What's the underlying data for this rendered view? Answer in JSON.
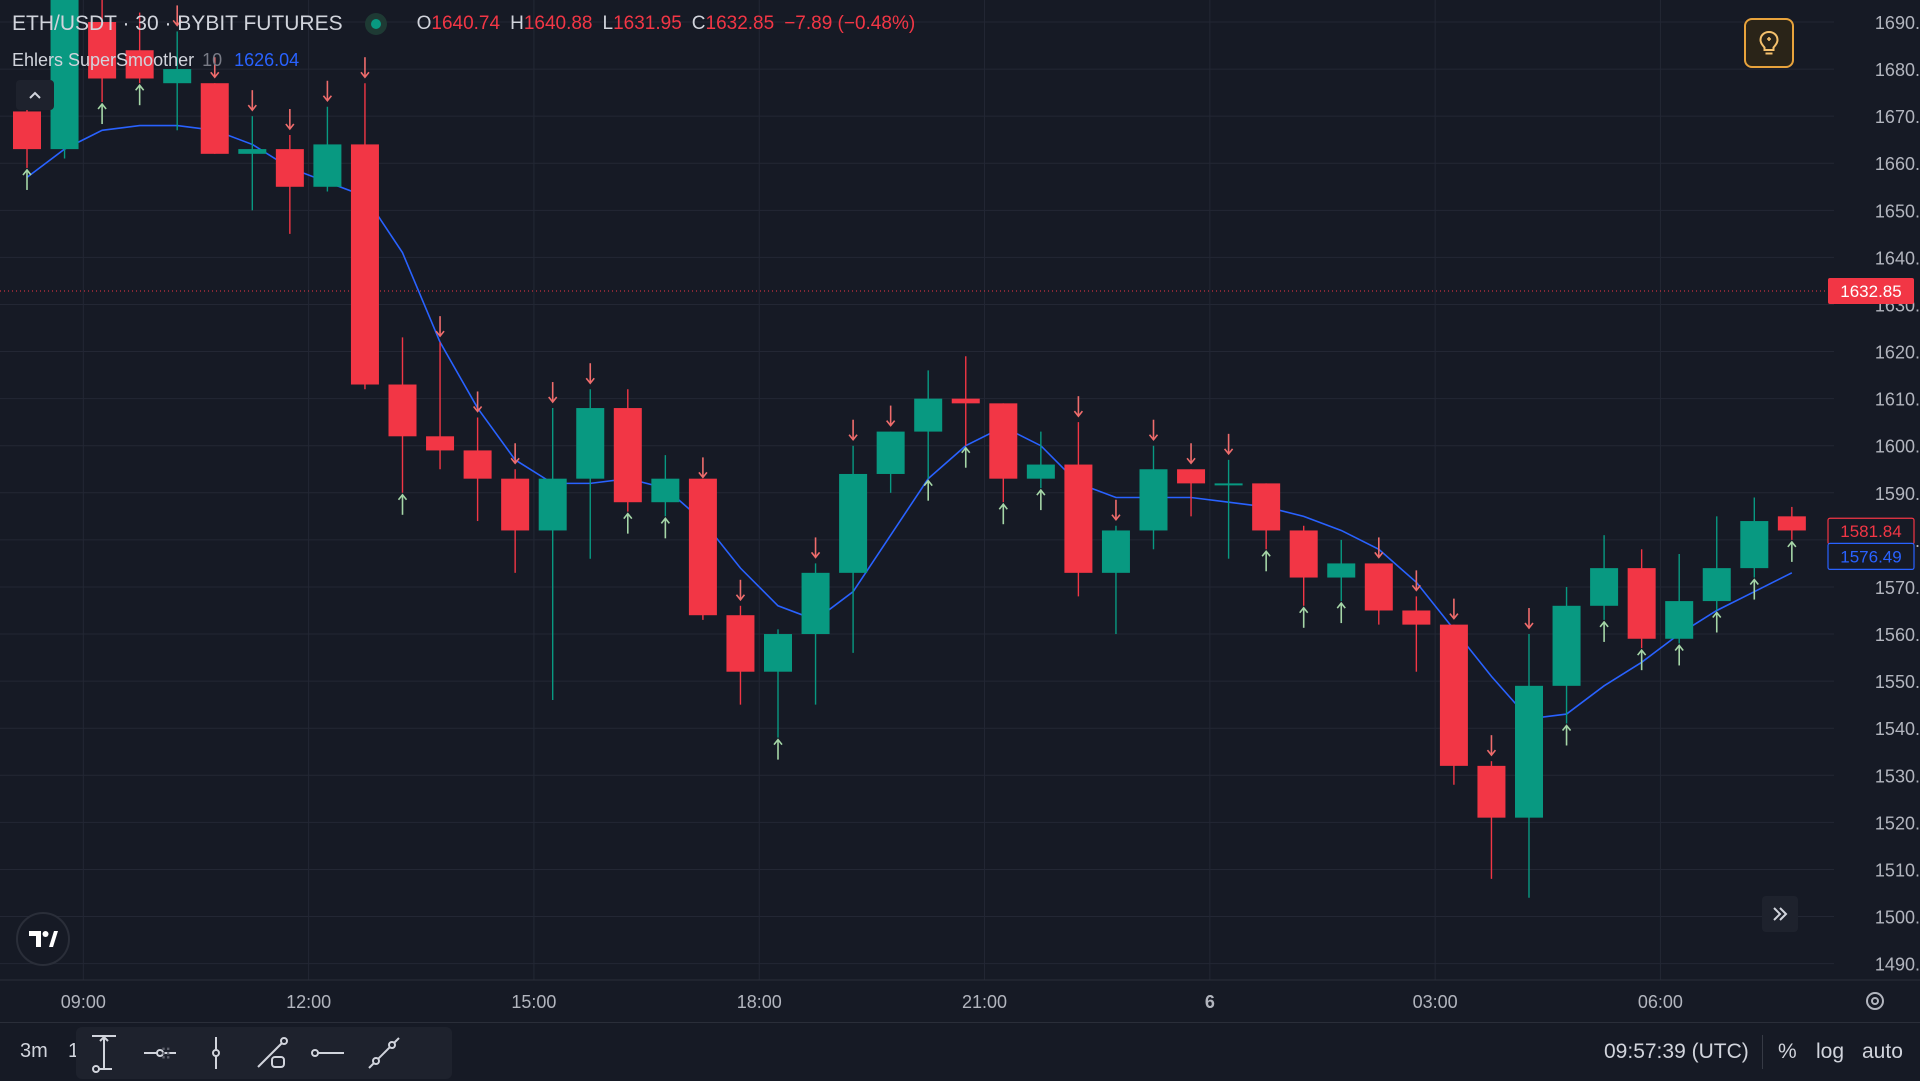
{
  "header": {
    "symbol": "ETH/USDT · 30 · BYBIT FUTURES",
    "ohlc": {
      "o_label": "O",
      "o": "1640.74",
      "h_label": "H",
      "h": "1640.88",
      "l_label": "L",
      "l": "1631.95",
      "c_label": "C",
      "c": "1632.85",
      "change": "−7.89 (−0.48%)"
    },
    "indicator": {
      "name": "Ehlers SuperSmoother",
      "param": "10",
      "value": "1626.04"
    }
  },
  "colors": {
    "background": "#161a25",
    "up": "#089981",
    "down": "#f23645",
    "smoother": "#2962ff",
    "grid": "#232734",
    "text": "#d1d4dc",
    "buy_arrow": "#a5d6a7",
    "sell_arrow": "#ef6c6c"
  },
  "bottom_bar": {
    "range": "3m",
    "range2": "1",
    "clock": "09:57:39 (UTC)",
    "percent": "%",
    "log": "log",
    "auto": "auto"
  },
  "chart_data": {
    "type": "candlestick",
    "y_axis": {
      "min": 1485,
      "max": 1693,
      "ticks": [
        1690,
        1680,
        1670,
        1660,
        1650,
        1640,
        1630,
        1620,
        1610,
        1600,
        1590,
        1580,
        1570,
        1560,
        1550,
        1540,
        1530,
        1520,
        1510,
        1500,
        1490
      ],
      "tick_labels": [
        "1690.00",
        "1680.00",
        "1670.00",
        "1660.00",
        "1650.00",
        "1640.00",
        "1630.00",
        "1620.00",
        "1610.00",
        "1600.00",
        "1590.00",
        "1580.00",
        "1570.00",
        "1560.00",
        "1550.00",
        "1540.00",
        "1530.00",
        "1520.00",
        "1510.00",
        "1500.00",
        "1490.00"
      ]
    },
    "x_axis": {
      "ticks": [
        {
          "bar": 1.5,
          "label": "09:00"
        },
        {
          "bar": 7.5,
          "label": "12:00"
        },
        {
          "bar": 13.5,
          "label": "15:00"
        },
        {
          "bar": 19.5,
          "label": "18:00"
        },
        {
          "bar": 25.5,
          "label": "21:00"
        },
        {
          "bar": 31.5,
          "label": "6"
        },
        {
          "bar": 37.5,
          "label": "03:00"
        },
        {
          "bar": 43.5,
          "label": "06:00"
        }
      ]
    },
    "price_labels": [
      {
        "value": 1632.85,
        "text": "1632.85",
        "style": "current"
      },
      {
        "value": 1581.84,
        "text": "1581.84",
        "style": "close"
      },
      {
        "value": 1576.49,
        "text": "1576.49",
        "style": "smoother"
      }
    ],
    "candles": [
      {
        "o": 1671,
        "h": 1676,
        "l": 1659,
        "c": 1663
      },
      {
        "o": 1663,
        "h": 1696,
        "l": 1661,
        "c": 1696
      },
      {
        "o": 1690,
        "h": 1697,
        "l": 1673,
        "c": 1678
      },
      {
        "o": 1684,
        "h": 1692,
        "l": 1677,
        "c": 1678
      },
      {
        "o": 1677,
        "h": 1688,
        "l": 1667,
        "c": 1680
      },
      {
        "o": 1677,
        "h": 1677,
        "l": 1662,
        "c": 1662
      },
      {
        "o": 1662,
        "h": 1670,
        "l": 1650,
        "c": 1663
      },
      {
        "o": 1663,
        "h": 1666,
        "l": 1645,
        "c": 1655
      },
      {
        "o": 1655,
        "h": 1672,
        "l": 1654,
        "c": 1664
      },
      {
        "o": 1664,
        "h": 1677,
        "l": 1612,
        "c": 1613
      },
      {
        "o": 1613,
        "h": 1623,
        "l": 1590,
        "c": 1602
      },
      {
        "o": 1602,
        "h": 1622,
        "l": 1595,
        "c": 1599
      },
      {
        "o": 1599,
        "h": 1606,
        "l": 1584,
        "c": 1593
      },
      {
        "o": 1593,
        "h": 1595,
        "l": 1573,
        "c": 1582
      },
      {
        "o": 1582,
        "h": 1608,
        "l": 1546,
        "c": 1593
      },
      {
        "o": 1593,
        "h": 1612,
        "l": 1576,
        "c": 1608
      },
      {
        "o": 1608,
        "h": 1612,
        "l": 1586,
        "c": 1588
      },
      {
        "o": 1588,
        "h": 1598,
        "l": 1585,
        "c": 1593
      },
      {
        "o": 1593,
        "h": 1592,
        "l": 1563,
        "c": 1564
      },
      {
        "o": 1564,
        "h": 1566,
        "l": 1545,
        "c": 1552
      },
      {
        "o": 1552,
        "h": 1561,
        "l": 1538,
        "c": 1560
      },
      {
        "o": 1560,
        "h": 1575,
        "l": 1545,
        "c": 1573
      },
      {
        "o": 1573,
        "h": 1600,
        "l": 1556,
        "c": 1594
      },
      {
        "o": 1594,
        "h": 1603,
        "l": 1590,
        "c": 1603
      },
      {
        "o": 1603,
        "h": 1616,
        "l": 1593,
        "c": 1610
      },
      {
        "o": 1610,
        "h": 1619,
        "l": 1600,
        "c": 1609
      },
      {
        "o": 1609,
        "h": 1609,
        "l": 1588,
        "c": 1593
      },
      {
        "o": 1593,
        "h": 1603,
        "l": 1591,
        "c": 1596
      },
      {
        "o": 1596,
        "h": 1605,
        "l": 1568,
        "c": 1573
      },
      {
        "o": 1573,
        "h": 1583,
        "l": 1560,
        "c": 1582
      },
      {
        "o": 1582,
        "h": 1600,
        "l": 1578,
        "c": 1595
      },
      {
        "o": 1595,
        "h": 1595,
        "l": 1585,
        "c": 1592
      },
      {
        "o": 1592,
        "h": 1597,
        "l": 1576,
        "c": 1592
      },
      {
        "o": 1592,
        "h": 1592,
        "l": 1578,
        "c": 1582
      },
      {
        "o": 1582,
        "h": 1583,
        "l": 1566,
        "c": 1572
      },
      {
        "o": 1572,
        "h": 1580,
        "l": 1567,
        "c": 1575
      },
      {
        "o": 1575,
        "h": 1575,
        "l": 1562,
        "c": 1565
      },
      {
        "o": 1565,
        "h": 1568,
        "l": 1552,
        "c": 1562
      },
      {
        "o": 1562,
        "h": 1562,
        "l": 1528,
        "c": 1532
      },
      {
        "o": 1532,
        "h": 1533,
        "l": 1508,
        "c": 1521
      },
      {
        "o": 1521,
        "h": 1560,
        "l": 1504,
        "c": 1549
      },
      {
        "o": 1549,
        "h": 1570,
        "l": 1541,
        "c": 1566
      },
      {
        "o": 1566,
        "h": 1581,
        "l": 1563,
        "c": 1574
      },
      {
        "o": 1574,
        "h": 1578,
        "l": 1557,
        "c": 1559
      },
      {
        "o": 1559,
        "h": 1577,
        "l": 1558,
        "c": 1567
      },
      {
        "o": 1567,
        "h": 1585,
        "l": 1565,
        "c": 1574
      },
      {
        "o": 1574,
        "h": 1589,
        "l": 1572,
        "c": 1584
      },
      {
        "o": 1585,
        "h": 1587,
        "l": 1580,
        "c": 1582
      }
    ],
    "smoother": [
      1657,
      1663,
      1667,
      1668,
      1668,
      1667,
      1664,
      1659,
      1656,
      1653,
      1641,
      1622,
      1608,
      1597,
      1592,
      1592,
      1593,
      1591,
      1584,
      1574,
      1566,
      1563,
      1569,
      1581,
      1593,
      1600,
      1604,
      1600,
      1592,
      1589,
      1589,
      1589,
      1588,
      1587,
      1585,
      1582,
      1578,
      1571,
      1561,
      1551,
      1542,
      1543,
      1549,
      1554,
      1560,
      1565,
      1569,
      1573
    ],
    "signals": [
      {
        "bar": 0,
        "dir": "up"
      },
      {
        "bar": 2,
        "dir": "up"
      },
      {
        "bar": 3,
        "dir": "up"
      },
      {
        "bar": 4,
        "dir": "down"
      },
      {
        "bar": 5,
        "dir": "down"
      },
      {
        "bar": 6,
        "dir": "down"
      },
      {
        "bar": 7,
        "dir": "down"
      },
      {
        "bar": 8,
        "dir": "down"
      },
      {
        "bar": 9,
        "dir": "down"
      },
      {
        "bar": 10,
        "dir": "up"
      },
      {
        "bar": 11,
        "dir": "down"
      },
      {
        "bar": 12,
        "dir": "down"
      },
      {
        "bar": 13,
        "dir": "down"
      },
      {
        "bar": 14,
        "dir": "down"
      },
      {
        "bar": 15,
        "dir": "down"
      },
      {
        "bar": 16,
        "dir": "up"
      },
      {
        "bar": 17,
        "dir": "up"
      },
      {
        "bar": 18,
        "dir": "down"
      },
      {
        "bar": 19,
        "dir": "down"
      },
      {
        "bar": 20,
        "dir": "up"
      },
      {
        "bar": 21,
        "dir": "down"
      },
      {
        "bar": 22,
        "dir": "down"
      },
      {
        "bar": 23,
        "dir": "down"
      },
      {
        "bar": 24,
        "dir": "up"
      },
      {
        "bar": 25,
        "dir": "up"
      },
      {
        "bar": 26,
        "dir": "up"
      },
      {
        "bar": 27,
        "dir": "up"
      },
      {
        "bar": 28,
        "dir": "down"
      },
      {
        "bar": 29,
        "dir": "down"
      },
      {
        "bar": 30,
        "dir": "down"
      },
      {
        "bar": 31,
        "dir": "down"
      },
      {
        "bar": 32,
        "dir": "down"
      },
      {
        "bar": 33,
        "dir": "up"
      },
      {
        "bar": 34,
        "dir": "up"
      },
      {
        "bar": 35,
        "dir": "up"
      },
      {
        "bar": 36,
        "dir": "down"
      },
      {
        "bar": 37,
        "dir": "down"
      },
      {
        "bar": 38,
        "dir": "down"
      },
      {
        "bar": 39,
        "dir": "down"
      },
      {
        "bar": 40,
        "dir": "down"
      },
      {
        "bar": 41,
        "dir": "up"
      },
      {
        "bar": 42,
        "dir": "up"
      },
      {
        "bar": 43,
        "dir": "up"
      },
      {
        "bar": 44,
        "dir": "up"
      },
      {
        "bar": 45,
        "dir": "up"
      },
      {
        "bar": 46,
        "dir": "up"
      },
      {
        "bar": 47,
        "dir": "up"
      }
    ]
  }
}
